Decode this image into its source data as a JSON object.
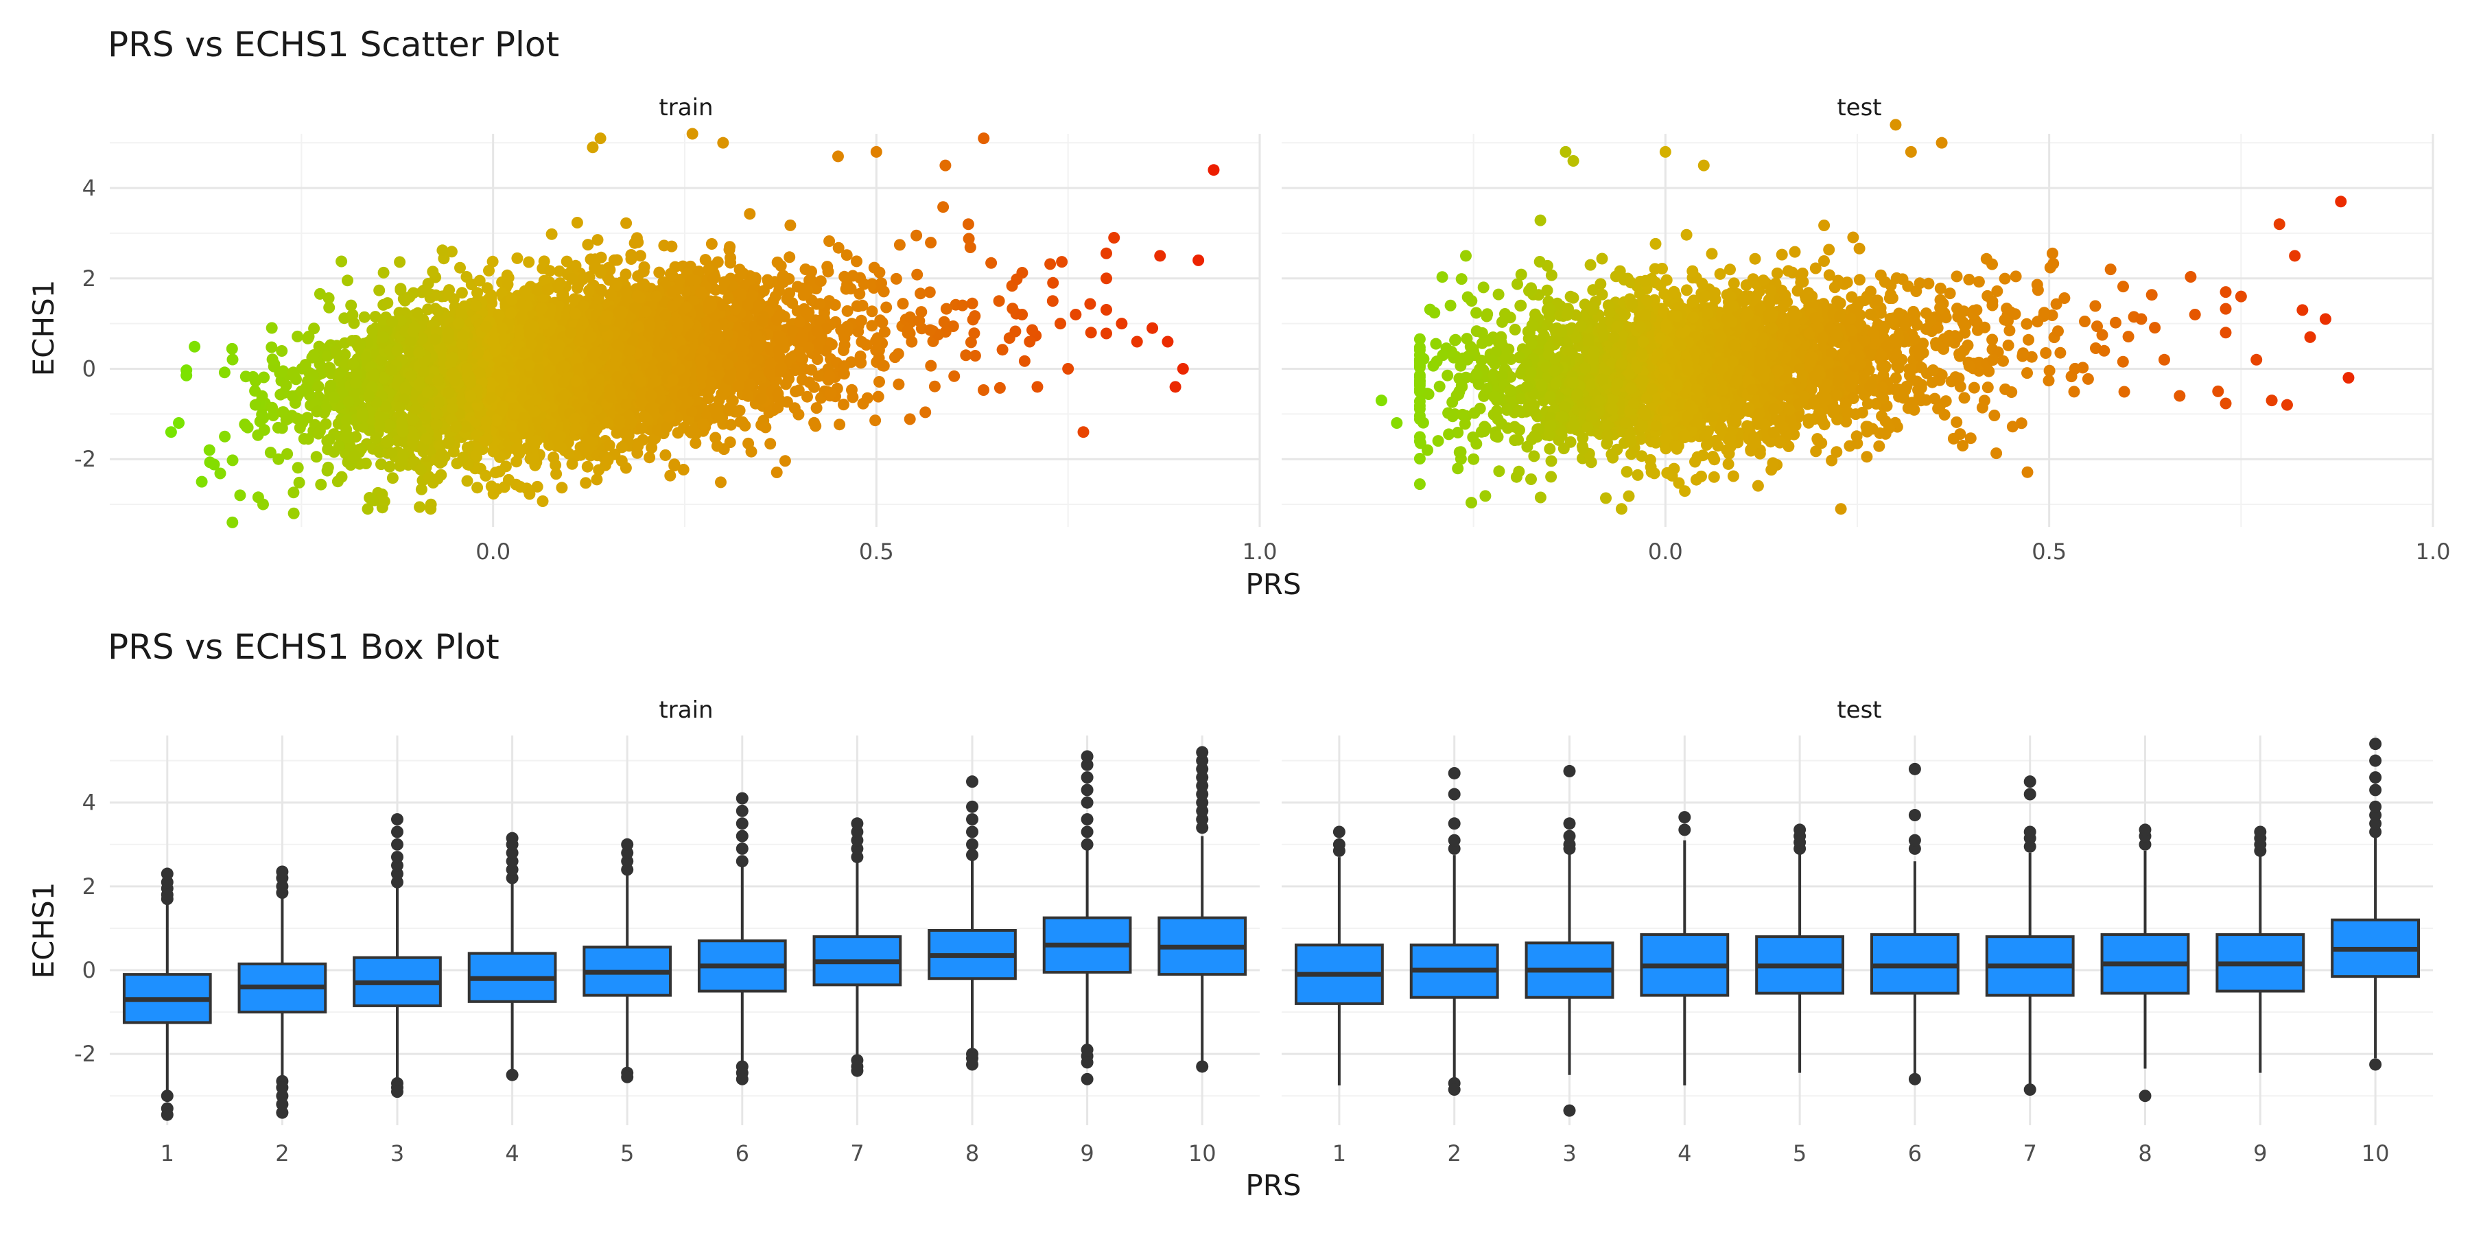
{
  "charts": [
    {
      "title": "PRS vs ECHS1 Scatter Plot",
      "xlabel": "PRS",
      "ylabel": "ECHS1",
      "panels": [
        "train",
        "test"
      ]
    },
    {
      "title": "PRS vs ECHS1 Box Plot",
      "xlabel": "PRS",
      "ylabel": "ECHS1",
      "panels": [
        "train",
        "test"
      ]
    }
  ],
  "chart_data": [
    {
      "type": "scatter",
      "title": "PRS vs ECHS1 Scatter Plot",
      "xlabel": "PRS",
      "ylabel": "ECHS1",
      "facets": [
        "train",
        "test"
      ],
      "xlim": [
        -0.5,
        1.0
      ],
      "ylim": [
        -3.5,
        5.2
      ],
      "x_ticks": [
        "0.0",
        "0.5",
        "1.0"
      ],
      "y_ticks": [
        "-2",
        "0",
        "2",
        "4"
      ],
      "color_gradient": [
        "#66ee00",
        "#d4b000",
        "#e08000",
        "#ee1100"
      ],
      "grid": true,
      "series": [
        {
          "facet": "train",
          "cloud": {
            "center": [
              0.05,
              0.0
            ],
            "x_range": [
              -0.45,
              0.95
            ],
            "y_range": [
              -3.4,
              5.2
            ]
          },
          "points": [
            [
              -0.42,
              -1.4
            ],
            [
              -0.41,
              -1.2
            ],
            [
              -0.38,
              -2.5
            ],
            [
              -0.37,
              -1.8
            ],
            [
              -0.35,
              -1.5
            ],
            [
              -0.34,
              -3.4
            ],
            [
              -0.33,
              -2.8
            ],
            [
              -0.32,
              -1.3
            ],
            [
              -0.31,
              -0.8
            ],
            [
              -0.3,
              -3.0
            ],
            [
              -0.28,
              -2.0
            ],
            [
              -0.26,
              -3.2
            ],
            [
              -0.25,
              -0.5
            ],
            [
              0.14,
              5.1
            ],
            [
              0.13,
              4.9
            ],
            [
              0.26,
              5.2
            ],
            [
              0.3,
              5.0
            ],
            [
              0.45,
              4.7
            ],
            [
              0.5,
              4.8
            ],
            [
              0.59,
              4.5
            ],
            [
              0.64,
              5.1
            ],
            [
              0.62,
              3.2
            ],
            [
              0.66,
              1.5
            ],
            [
              0.69,
              1.2
            ],
            [
              0.7,
              0.6
            ],
            [
              0.71,
              -0.4
            ],
            [
              0.73,
              1.5
            ],
            [
              0.74,
              1.0
            ],
            [
              0.75,
              0.0
            ],
            [
              0.76,
              1.2
            ],
            [
              0.77,
              -1.4
            ],
            [
              0.78,
              0.8
            ],
            [
              0.8,
              2.0
            ],
            [
              0.81,
              2.9
            ],
            [
              0.82,
              1.0
            ],
            [
              0.84,
              0.6
            ],
            [
              0.86,
              0.9
            ],
            [
              0.87,
              2.5
            ],
            [
              0.88,
              0.6
            ],
            [
              0.89,
              -0.4
            ],
            [
              0.9,
              0.0
            ],
            [
              0.92,
              2.4
            ],
            [
              0.94,
              4.4
            ]
          ]
        },
        {
          "facet": "test",
          "cloud": {
            "center": [
              0.0,
              0.0
            ],
            "x_range": [
              -0.37,
              0.88
            ],
            "y_range": [
              -3.4,
              5.4
            ]
          },
          "points": [
            [
              -0.37,
              -0.7
            ],
            [
              -0.35,
              -1.2
            ],
            [
              -0.32,
              -1.6
            ],
            [
              -0.31,
              -1.8
            ],
            [
              -0.29,
              0.3
            ],
            [
              -0.28,
              1.4
            ],
            [
              -0.26,
              2.5
            ],
            [
              -0.25,
              -2.0
            ],
            [
              -0.13,
              4.8
            ],
            [
              -0.12,
              4.6
            ],
            [
              0.0,
              4.8
            ],
            [
              0.05,
              4.5
            ],
            [
              0.3,
              5.4
            ],
            [
              0.32,
              4.8
            ],
            [
              0.36,
              5.0
            ],
            [
              0.58,
              2.2
            ],
            [
              0.62,
              1.1
            ],
            [
              0.65,
              0.2
            ],
            [
              0.67,
              -0.6
            ],
            [
              0.69,
              1.2
            ],
            [
              0.72,
              -0.5
            ],
            [
              0.73,
              0.8
            ],
            [
              0.75,
              1.6
            ],
            [
              0.77,
              0.2
            ],
            [
              0.79,
              -0.7
            ],
            [
              0.8,
              3.2
            ],
            [
              0.81,
              -0.8
            ],
            [
              0.82,
              2.5
            ],
            [
              0.83,
              1.3
            ],
            [
              0.84,
              0.7
            ],
            [
              0.86,
              1.1
            ],
            [
              0.88,
              3.7
            ],
            [
              0.89,
              -0.2
            ]
          ]
        }
      ]
    },
    {
      "type": "box",
      "title": "PRS vs ECHS1 Box Plot",
      "xlabel": "PRS",
      "ylabel": "ECHS1",
      "facets": [
        "train",
        "test"
      ],
      "categories": [
        "1",
        "2",
        "3",
        "4",
        "5",
        "6",
        "7",
        "8",
        "9",
        "10"
      ],
      "ylim": [
        -3.7,
        5.6
      ],
      "y_ticks": [
        "-2",
        "0",
        "2",
        "4"
      ],
      "box_fill": "#1e90ff",
      "box_stroke": "#333333",
      "grid": true,
      "series": [
        {
          "facet": "train",
          "boxes": [
            {
              "category": "1",
              "q1": -1.25,
              "median": -0.7,
              "q3": -0.1,
              "whisker_low": -2.9,
              "whisker_high": 1.6,
              "outliers": [
                -3.0,
                -3.3,
                -3.45,
                1.7,
                1.8,
                1.95,
                2.1,
                2.3
              ]
            },
            {
              "category": "2",
              "q1": -1.0,
              "median": -0.4,
              "q3": 0.15,
              "whisker_low": -2.55,
              "whisker_high": 1.75,
              "outliers": [
                -2.65,
                -2.8,
                -3.0,
                -3.2,
                -3.4,
                1.85,
                2.0,
                2.2,
                2.35
              ]
            },
            {
              "category": "3",
              "q1": -0.85,
              "median": -0.3,
              "q3": 0.3,
              "whisker_low": -2.6,
              "whisker_high": 2.0,
              "outliers": [
                -2.7,
                -2.8,
                -2.9,
                2.1,
                2.3,
                2.5,
                2.7,
                3.0,
                3.3,
                3.6
              ]
            },
            {
              "category": "4",
              "q1": -0.75,
              "median": -0.2,
              "q3": 0.4,
              "whisker_low": -2.4,
              "whisker_high": 2.1,
              "outliers": [
                -2.5,
                2.2,
                2.4,
                2.6,
                2.8,
                3.0,
                3.15
              ]
            },
            {
              "category": "5",
              "q1": -0.6,
              "median": -0.05,
              "q3": 0.55,
              "whisker_low": -2.35,
              "whisker_high": 2.3,
              "outliers": [
                -2.45,
                -2.55,
                2.4,
                2.6,
                2.8,
                3.0
              ]
            },
            {
              "category": "6",
              "q1": -0.5,
              "median": 0.1,
              "q3": 0.7,
              "whisker_low": -2.2,
              "whisker_high": 2.5,
              "outliers": [
                -2.3,
                -2.45,
                -2.6,
                2.6,
                2.9,
                3.2,
                3.5,
                3.8,
                4.1
              ]
            },
            {
              "category": "7",
              "q1": -0.35,
              "median": 0.2,
              "q3": 0.8,
              "whisker_low": -2.05,
              "whisker_high": 2.6,
              "outliers": [
                -2.15,
                -2.3,
                -2.4,
                2.7,
                2.9,
                3.1,
                3.3,
                3.5
              ]
            },
            {
              "category": "8",
              "q1": -0.2,
              "median": 0.35,
              "q3": 0.95,
              "whisker_low": -1.9,
              "whisker_high": 2.65,
              "outliers": [
                -2.0,
                -2.1,
                -2.25,
                2.75,
                3.0,
                3.3,
                3.6,
                3.9,
                4.5
              ]
            },
            {
              "category": "9",
              "q1": -0.05,
              "median": 0.6,
              "q3": 1.25,
              "whisker_low": -1.8,
              "whisker_high": 2.9,
              "outliers": [
                -1.9,
                -2.05,
                -2.2,
                -2.6,
                3.0,
                3.3,
                3.6,
                4.0,
                4.3,
                4.6,
                4.9,
                5.1
              ]
            },
            {
              "category": "10",
              "q1": -0.1,
              "median": 0.55,
              "q3": 1.25,
              "whisker_low": -2.2,
              "whisker_high": 3.2,
              "outliers": [
                -2.3,
                3.4,
                3.6,
                3.8,
                4.0,
                4.2,
                4.4,
                4.6,
                4.8,
                5.0,
                5.2
              ]
            }
          ]
        },
        {
          "facet": "test",
          "boxes": [
            {
              "category": "1",
              "q1": -0.8,
              "median": -0.1,
              "q3": 0.6,
              "whisker_low": -2.75,
              "whisker_high": 2.7,
              "outliers": [
                2.85,
                3.0,
                3.3
              ]
            },
            {
              "category": "2",
              "q1": -0.65,
              "median": 0.0,
              "q3": 0.6,
              "whisker_low": -2.6,
              "whisker_high": 2.75,
              "outliers": [
                -2.7,
                -2.85,
                2.9,
                3.1,
                3.5,
                4.2,
                4.7
              ]
            },
            {
              "category": "3",
              "q1": -0.65,
              "median": 0.0,
              "q3": 0.65,
              "whisker_low": -2.5,
              "whisker_high": 2.8,
              "outliers": [
                -3.35,
                2.9,
                3.0,
                3.2,
                3.5,
                4.75
              ]
            },
            {
              "category": "4",
              "q1": -0.6,
              "median": 0.1,
              "q3": 0.85,
              "whisker_low": -2.75,
              "whisker_high": 3.1,
              "outliers": [
                3.35,
                3.65
              ]
            },
            {
              "category": "5",
              "q1": -0.55,
              "median": 0.1,
              "q3": 0.8,
              "whisker_low": -2.45,
              "whisker_high": 2.8,
              "outliers": [
                2.9,
                3.05,
                3.2,
                3.35
              ]
            },
            {
              "category": "6",
              "q1": -0.55,
              "median": 0.1,
              "q3": 0.85,
              "whisker_low": -2.5,
              "whisker_high": 2.6,
              "outliers": [
                -2.6,
                2.9,
                3.1,
                3.7,
                4.8
              ]
            },
            {
              "category": "7",
              "q1": -0.6,
              "median": 0.1,
              "q3": 0.8,
              "whisker_low": -2.75,
              "whisker_high": 2.8,
              "outliers": [
                -2.85,
                2.95,
                3.15,
                3.3,
                4.2,
                4.5
              ]
            },
            {
              "category": "8",
              "q1": -0.55,
              "median": 0.15,
              "q3": 0.85,
              "whisker_low": -2.35,
              "whisker_high": 2.85,
              "outliers": [
                -3.0,
                3.0,
                3.2,
                3.35
              ]
            },
            {
              "category": "9",
              "q1": -0.5,
              "median": 0.15,
              "q3": 0.85,
              "whisker_low": -2.45,
              "whisker_high": 2.75,
              "outliers": [
                2.85,
                3.0,
                3.15,
                3.3
              ]
            },
            {
              "category": "10",
              "q1": -0.15,
              "median": 0.5,
              "q3": 1.2,
              "whisker_low": -2.1,
              "whisker_high": 3.2,
              "outliers": [
                -2.25,
                3.3,
                3.5,
                3.7,
                3.9,
                4.3,
                4.6,
                5.0,
                5.4
              ]
            }
          ]
        }
      ]
    }
  ]
}
